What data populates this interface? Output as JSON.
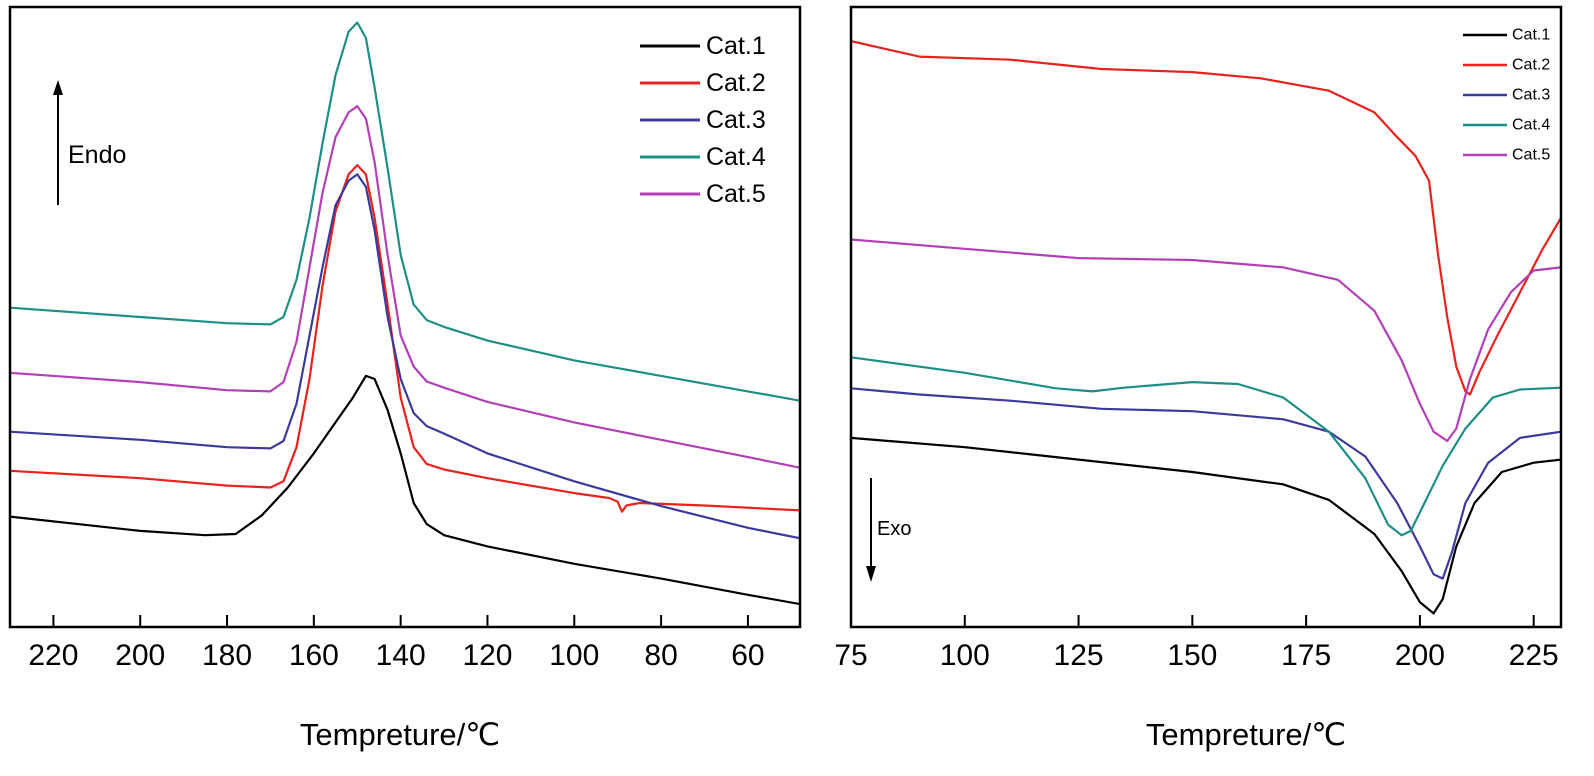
{
  "chart_data": [
    {
      "type": "line",
      "title": "",
      "xlabel": "Tempreture/℃",
      "ylabel": "",
      "x_reversed": true,
      "xlim": [
        230,
        48
      ],
      "xticks": [
        220,
        200,
        180,
        160,
        140,
        120,
        100,
        80,
        60
      ],
      "y_units": "arbitrary (heat flow, stacked curves)",
      "ylim": [
        0,
        100
      ],
      "annotation": "Endo",
      "annotation_arrow": "up",
      "legend_position": "top-right",
      "grid": false,
      "series": [
        {
          "name": "Cat.1",
          "color": "#000000",
          "points": [
            [
              230,
              17.8
            ],
            [
              200,
              15.5
            ],
            [
              185,
              14.8
            ],
            [
              178,
              15.0
            ],
            [
              172,
              18.0
            ],
            [
              166,
              22.5
            ],
            [
              160,
              28.0
            ],
            [
              155,
              33.0
            ],
            [
              151,
              37.0
            ],
            [
              148,
              40.5
            ],
            [
              146,
              40.0
            ],
            [
              143,
              35.0
            ],
            [
              140,
              28.0
            ],
            [
              137,
              20.0
            ],
            [
              134,
              16.6
            ],
            [
              130,
              14.8
            ],
            [
              120,
              13.0
            ],
            [
              100,
              10.2
            ],
            [
              80,
              7.8
            ],
            [
              60,
              5.2
            ],
            [
              48,
              3.7
            ]
          ]
        },
        {
          "name": "Cat.2",
          "color": "#e8221c",
          "points": [
            [
              230,
              25.2
            ],
            [
              200,
              24.0
            ],
            [
              180,
              22.8
            ],
            [
              170,
              22.5
            ],
            [
              167,
              23.5
            ],
            [
              164,
              29.0
            ],
            [
              161,
              40.0
            ],
            [
              158,
              55.0
            ],
            [
              155,
              67.0
            ],
            [
              152,
              73.0
            ],
            [
              150,
              74.5
            ],
            [
              148,
              73.0
            ],
            [
              146,
              66.0
            ],
            [
              143,
              52.0
            ],
            [
              140,
              37.0
            ],
            [
              137,
              29.0
            ],
            [
              134,
              26.3
            ],
            [
              130,
              25.4
            ],
            [
              120,
              24.0
            ],
            [
              100,
              21.6
            ],
            [
              92,
              20.8
            ],
            [
              90,
              20.2
            ],
            [
              89,
              18.6
            ],
            [
              88,
              19.6
            ],
            [
              85,
              20.0
            ],
            [
              70,
              19.6
            ],
            [
              48,
              18.8
            ]
          ]
        },
        {
          "name": "Cat.3",
          "color": "#3d3a9c",
          "points": [
            [
              230,
              31.5
            ],
            [
              200,
              30.2
            ],
            [
              180,
              29.0
            ],
            [
              170,
              28.8
            ],
            [
              167,
              30.0
            ],
            [
              164,
              36.0
            ],
            [
              161,
              47.0
            ],
            [
              158,
              58.0
            ],
            [
              155,
              68.0
            ],
            [
              152,
              72.0
            ],
            [
              150,
              73.0
            ],
            [
              148,
              71.0
            ],
            [
              146,
              64.0
            ],
            [
              143,
              50.0
            ],
            [
              140,
              40.0
            ],
            [
              137,
              34.5
            ],
            [
              134,
              32.4
            ],
            [
              130,
              31.2
            ],
            [
              120,
              28.0
            ],
            [
              100,
              23.5
            ],
            [
              80,
              19.5
            ],
            [
              60,
              16.0
            ],
            [
              48,
              14.3
            ]
          ]
        },
        {
          "name": "Cat.4",
          "color": "#1e8f86",
          "points": [
            [
              230,
              51.5
            ],
            [
              200,
              50.0
            ],
            [
              180,
              49.0
            ],
            [
              170,
              48.8
            ],
            [
              167,
              50.0
            ],
            [
              164,
              56.0
            ],
            [
              161,
              66.0
            ],
            [
              158,
              78.0
            ],
            [
              155,
              89.0
            ],
            [
              152,
              96.0
            ],
            [
              150,
              97.5
            ],
            [
              148,
              95.0
            ],
            [
              146,
              87.0
            ],
            [
              143,
              74.0
            ],
            [
              140,
              60.0
            ],
            [
              137,
              52.0
            ],
            [
              134,
              49.5
            ],
            [
              130,
              48.4
            ],
            [
              120,
              46.2
            ],
            [
              100,
              43.0
            ],
            [
              80,
              40.5
            ],
            [
              60,
              38.0
            ],
            [
              48,
              36.5
            ]
          ]
        },
        {
          "name": "Cat.5",
          "color": "#b33fb8",
          "points": [
            [
              230,
              41.0
            ],
            [
              200,
              39.5
            ],
            [
              180,
              38.2
            ],
            [
              170,
              38.0
            ],
            [
              167,
              39.5
            ],
            [
              164,
              46.0
            ],
            [
              161,
              58.0
            ],
            [
              158,
              70.0
            ],
            [
              155,
              79.0
            ],
            [
              152,
              83.0
            ],
            [
              150,
              84.0
            ],
            [
              148,
              82.0
            ],
            [
              146,
              75.0
            ],
            [
              143,
              60.0
            ],
            [
              140,
              47.0
            ],
            [
              137,
              42.0
            ],
            [
              134,
              39.6
            ],
            [
              130,
              38.6
            ],
            [
              120,
              36.3
            ],
            [
              100,
              33.0
            ],
            [
              80,
              30.2
            ],
            [
              60,
              27.4
            ],
            [
              48,
              25.7
            ]
          ]
        }
      ]
    },
    {
      "type": "line",
      "title": "",
      "xlabel": "Tempreture/℃",
      "ylabel": "",
      "xlim": [
        75,
        231
      ],
      "xticks": [
        75,
        100,
        125,
        150,
        175,
        200,
        225
      ],
      "y_units": "arbitrary (heat flow, stacked curves)",
      "ylim": [
        0,
        100
      ],
      "annotation": "Exo",
      "annotation_arrow": "down",
      "legend_position": "top-right",
      "grid": false,
      "series": [
        {
          "name": "Cat.1",
          "color": "#000000",
          "points": [
            [
              75,
              30.5
            ],
            [
              100,
              29.0
            ],
            [
              125,
              27.0
            ],
            [
              150,
              25.0
            ],
            [
              170,
              23.0
            ],
            [
              180,
              20.5
            ],
            [
              190,
              15.0
            ],
            [
              196,
              9.0
            ],
            [
              200,
              4.0
            ],
            [
              203,
              2.2
            ],
            [
              205,
              4.5
            ],
            [
              208,
              13.0
            ],
            [
              212,
              20.0
            ],
            [
              218,
              25.0
            ],
            [
              225,
              26.5
            ],
            [
              231,
              27.0
            ]
          ]
        },
        {
          "name": "Cat.2",
          "color": "#e8221c",
          "points": [
            [
              75,
              94.5
            ],
            [
              90,
              92.0
            ],
            [
              110,
              91.5
            ],
            [
              130,
              90.0
            ],
            [
              150,
              89.5
            ],
            [
              165,
              88.5
            ],
            [
              180,
              86.5
            ],
            [
              190,
              83.0
            ],
            [
              195,
              79.0
            ],
            [
              199,
              76.0
            ],
            [
              202,
              72.0
            ],
            [
              204,
              60.0
            ],
            [
              206,
              50.0
            ],
            [
              208,
              42.0
            ],
            [
              210,
              38.0
            ],
            [
              211,
              37.5
            ],
            [
              213,
              41.0
            ],
            [
              217,
              47.0
            ],
            [
              222,
              54.0
            ],
            [
              227,
              61.0
            ],
            [
              231,
              66.0
            ]
          ]
        },
        {
          "name": "Cat.3",
          "color": "#3d3a9c",
          "points": [
            [
              75,
              38.5
            ],
            [
              90,
              37.5
            ],
            [
              110,
              36.5
            ],
            [
              130,
              35.2
            ],
            [
              150,
              34.8
            ],
            [
              170,
              33.5
            ],
            [
              180,
              31.5
            ],
            [
              188,
              27.5
            ],
            [
              195,
              20.0
            ],
            [
              200,
              13.0
            ],
            [
              203,
              8.5
            ],
            [
              205,
              7.8
            ],
            [
              207,
              12.0
            ],
            [
              210,
              20.0
            ],
            [
              215,
              26.5
            ],
            [
              222,
              30.5
            ],
            [
              231,
              31.5
            ]
          ]
        },
        {
          "name": "Cat.4",
          "color": "#1e8f86",
          "points": [
            [
              75,
              43.5
            ],
            [
              100,
              41.0
            ],
            [
              120,
              38.5
            ],
            [
              128,
              38.0
            ],
            [
              135,
              38.6
            ],
            [
              150,
              39.5
            ],
            [
              160,
              39.2
            ],
            [
              170,
              37.0
            ],
            [
              180,
              31.5
            ],
            [
              188,
              24.0
            ],
            [
              193,
              16.5
            ],
            [
              196,
              14.8
            ],
            [
              198,
              15.5
            ],
            [
              201,
              20.0
            ],
            [
              205,
              26.0
            ],
            [
              210,
              32.0
            ],
            [
              216,
              37.0
            ],
            [
              222,
              38.3
            ],
            [
              231,
              38.6
            ]
          ]
        },
        {
          "name": "Cat.5",
          "color": "#b33fb8",
          "points": [
            [
              75,
              62.5
            ],
            [
              100,
              61.0
            ],
            [
              125,
              59.5
            ],
            [
              150,
              59.2
            ],
            [
              170,
              58.0
            ],
            [
              182,
              56.0
            ],
            [
              190,
              51.0
            ],
            [
              196,
              43.0
            ],
            [
              200,
              36.0
            ],
            [
              203,
              31.5
            ],
            [
              206,
              30.0
            ],
            [
              208,
              32.0
            ],
            [
              211,
              40.0
            ],
            [
              215,
              48.0
            ],
            [
              220,
              54.0
            ],
            [
              225,
              57.5
            ],
            [
              231,
              58.0
            ]
          ]
        }
      ]
    }
  ]
}
